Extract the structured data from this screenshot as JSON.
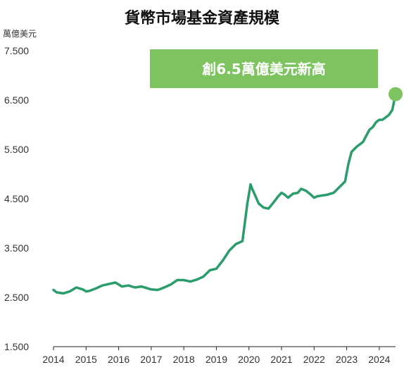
{
  "chart_data": {
    "type": "line",
    "title": "貨幣市場基金資產規模",
    "unit_label": "萬億美元",
    "annotation": "創6.5萬億美元新高",
    "colors": {
      "line": "#2a9d6b",
      "marker": "#7dc460",
      "banner": "#7dc460"
    },
    "x_ticks": [
      "2014",
      "2015",
      "2016",
      "2017",
      "2018",
      "2019",
      "2020",
      "2021",
      "2022",
      "2023",
      "2024"
    ],
    "y_ticks": [
      "7.500",
      "6.500",
      "5.500",
      "4.500",
      "3.500",
      "2.500",
      "1.500"
    ],
    "xlim": [
      2014,
      2024.5
    ],
    "ylim": [
      1.5,
      7.5
    ],
    "grid": false,
    "series": [
      {
        "x": [
          2014.0,
          2014.1,
          2014.3,
          2014.5,
          2014.7,
          2014.9,
          2015.0,
          2015.1,
          2015.3,
          2015.5,
          2015.7,
          2015.9,
          2016.0,
          2016.1,
          2016.3,
          2016.5,
          2016.7,
          2016.9,
          2017.0,
          2017.2,
          2017.4,
          2017.6,
          2017.8,
          2018.0,
          2018.2,
          2018.4,
          2018.6,
          2018.8,
          2019.0,
          2019.2,
          2019.4,
          2019.6,
          2019.8,
          2019.95,
          2020.05,
          2020.1,
          2020.2,
          2020.3,
          2020.45,
          2020.6,
          2020.75,
          2020.9,
          2021.0,
          2021.1,
          2021.2,
          2021.35,
          2021.5,
          2021.6,
          2021.75,
          2021.9,
          2022.0,
          2022.1,
          2022.2,
          2022.4,
          2022.6,
          2022.8,
          2022.95,
          2023.05,
          2023.15,
          2023.3,
          2023.5,
          2023.7,
          2023.8,
          2023.9,
          2024.0,
          2024.1,
          2024.2,
          2024.3,
          2024.4,
          2024.5
        ],
        "y": [
          2.65,
          2.6,
          2.58,
          2.62,
          2.7,
          2.66,
          2.62,
          2.63,
          2.68,
          2.74,
          2.77,
          2.8,
          2.76,
          2.72,
          2.74,
          2.7,
          2.72,
          2.68,
          2.66,
          2.65,
          2.7,
          2.76,
          2.85,
          2.85,
          2.82,
          2.86,
          2.92,
          3.05,
          3.08,
          3.25,
          3.45,
          3.58,
          3.64,
          4.4,
          4.79,
          4.7,
          4.55,
          4.4,
          4.32,
          4.3,
          4.42,
          4.55,
          4.62,
          4.58,
          4.52,
          4.6,
          4.62,
          4.7,
          4.66,
          4.58,
          4.52,
          4.55,
          4.56,
          4.58,
          4.62,
          4.75,
          4.85,
          5.2,
          5.45,
          5.55,
          5.65,
          5.9,
          5.95,
          6.05,
          6.1,
          6.1,
          6.15,
          6.2,
          6.3,
          6.62
        ]
      }
    ]
  }
}
